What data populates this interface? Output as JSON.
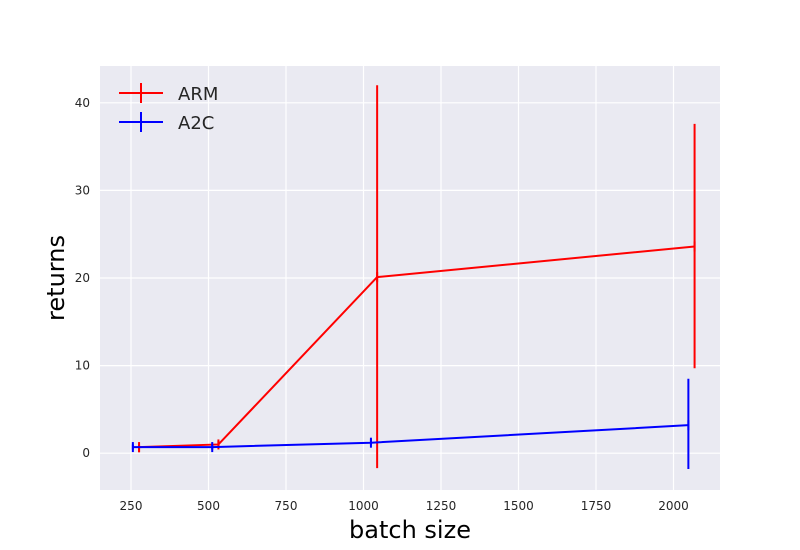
{
  "chart_data": {
    "type": "line",
    "title": "",
    "xlabel": "batch size",
    "ylabel": "returns",
    "xlim": [
      150,
      2150
    ],
    "ylim": [
      -4.2,
      44.2
    ],
    "x_ticks": [
      250,
      500,
      750,
      1000,
      1250,
      1500,
      1750,
      2000
    ],
    "y_ticks": [
      0,
      10,
      20,
      30,
      40
    ],
    "grid": true,
    "legend_position": "top-left",
    "plot_background": "#eaeaf2",
    "grid_color": "#ffffff",
    "series": [
      {
        "name": "ARM",
        "color": "#ff0000",
        "x": [
          276,
          532,
          1044,
          2068
        ],
        "y": [
          0.7,
          1.0,
          20.1,
          23.6
        ],
        "err_low": [
          0.1,
          0.6,
          -1.7,
          9.7
        ],
        "err_high": [
          1.0,
          1.4,
          42.0,
          37.6
        ]
      },
      {
        "name": "A2C",
        "color": "#0000ff",
        "x": [
          256,
          512,
          1024,
          2048
        ],
        "y": [
          0.7,
          0.7,
          1.2,
          3.2
        ],
        "err_low": [
          0.4,
          0.4,
          0.9,
          -1.8
        ],
        "err_high": [
          1.0,
          1.0,
          1.6,
          8.5
        ]
      }
    ]
  }
}
